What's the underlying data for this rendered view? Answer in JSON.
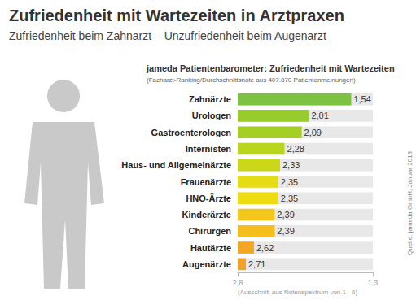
{
  "chart_data": {
    "type": "bar",
    "orientation": "horizontal",
    "title": "Zufriedenheit mit Wartezeiten in Arztpraxen",
    "subtitle": "Zufriedenheit beim Zahnarzt – Unzufriedenheit beim Augenarzt",
    "annotations": [
      "jameda Patientenbarometer: Zufriedenheit mit Wartezeiten",
      "(Facharzt-Ranking/Durchschnittsnote aus 407.870 Patientenmeinungen)",
      "(Ausschnitt aus Notenspektrum von 1 - 6)",
      "Quelle: jameda GmbH, Januar 2013"
    ],
    "categories": [
      "Zahnärzte",
      "Urologen",
      "Gastroenterologen",
      "Internisten",
      "Haus- und Allgemeinärzte",
      "Frauenärzte",
      "HNO-Ärzte",
      "Kinderärzte",
      "Chirurgen",
      "Hautärzte",
      "Augenärzte"
    ],
    "values": [
      1.54,
      2.01,
      2.09,
      2.28,
      2.33,
      2.35,
      2.35,
      2.39,
      2.39,
      2.62,
      2.71
    ],
    "value_labels": [
      "1,54",
      "2,01",
      "2,09",
      "2,28",
      "2,33",
      "2,35",
      "2,35",
      "2,39",
      "2,39",
      "2,62",
      "2,71"
    ],
    "colors": [
      "#7dc242",
      "#98cb2c",
      "#a5cf24",
      "#bad51d",
      "#cbd819",
      "#e6dc14",
      "#eedc12",
      "#f4c81a",
      "#f4bf1c",
      "#f2a623",
      "#f0a12b"
    ],
    "xlim": [
      2.8,
      1.3
    ],
    "xticks": [
      {
        "value": 2.8,
        "label": "2,8"
      },
      {
        "value": 1.3,
        "label": "1,3"
      }
    ],
    "data_labels": true,
    "grid": false
  }
}
